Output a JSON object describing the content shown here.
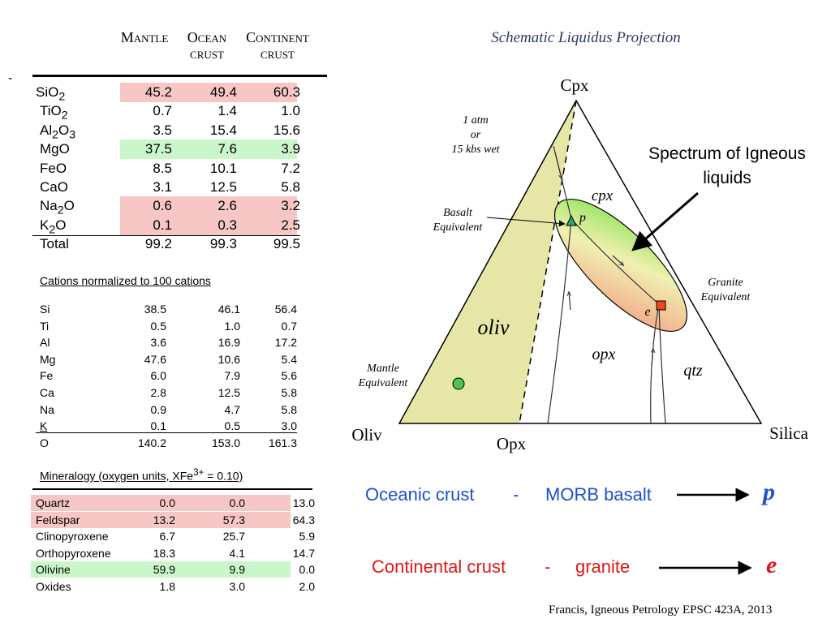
{
  "dash": "-",
  "headers": {
    "mantle": "Mantle",
    "ocean_l1": "Ocean",
    "ocean_l2": "crust",
    "continent_l1": "Continent",
    "continent_l2": "crust"
  },
  "oxides": [
    {
      "name_html": "SiO<sub>2</sub>",
      "mantle": "45.2",
      "ocean": "49.4",
      "continent": "60.3",
      "hl": "red"
    },
    {
      "name_html": "TiO<sub>2</sub>",
      "mantle": "0.7",
      "ocean": "1.4",
      "continent": "1.0",
      "hl": ""
    },
    {
      "name_html": "Al<sub>2</sub>O<sub>3</sub>",
      "mantle": "3.5",
      "ocean": "15.4",
      "continent": "15.6",
      "hl": ""
    },
    {
      "name_html": "MgO",
      "mantle": "37.5",
      "ocean": "7.6",
      "continent": "3.9",
      "hl": "green"
    },
    {
      "name_html": "FeO",
      "mantle": "8.5",
      "ocean": "10.1",
      "continent": "7.2",
      "hl": ""
    },
    {
      "name_html": "CaO",
      "mantle": "3.1",
      "ocean": "12.5",
      "continent": "5.8",
      "hl": ""
    },
    {
      "name_html": "Na<sub>2</sub>O",
      "mantle": "0.6",
      "ocean": "2.6",
      "continent": "3.2",
      "hl": "red"
    },
    {
      "name_html": "K<sub>2</sub>O",
      "mantle": "0.1",
      "ocean": "0.3",
      "continent": "2.5",
      "hl": "red"
    },
    {
      "name_html": "Total",
      "mantle": "99.2",
      "ocean": "99.3",
      "continent": "99.5",
      "hl": ""
    }
  ],
  "cations_title": "Cations normalized to  100 cations",
  "cations": [
    {
      "name": "Si",
      "mantle": "38.5",
      "ocean": "46.1",
      "continent": "56.4"
    },
    {
      "name": "Ti",
      "mantle": "0.5",
      "ocean": "1.0",
      "continent": "0.7"
    },
    {
      "name": "Al",
      "mantle": "3.6",
      "ocean": "16.9",
      "continent": "17.2"
    },
    {
      "name": "Mg",
      "mantle": "47.6",
      "ocean": "10.6",
      "continent": "5.4"
    },
    {
      "name": "Fe",
      "mantle": "6.0",
      "ocean": "7.9",
      "continent": "5.6"
    },
    {
      "name": "Ca",
      "mantle": "2.8",
      "ocean": "12.5",
      "continent": "5.8"
    },
    {
      "name": "Na",
      "mantle": "0.9",
      "ocean": "4.7",
      "continent": "5.8"
    },
    {
      "name": "K",
      "mantle": "0.1",
      "ocean": "0.5",
      "continent": "3.0"
    },
    {
      "name": "O",
      "mantle": "140.2",
      "ocean": "153.0",
      "continent": "161.3"
    }
  ],
  "mineralogy_title_html": "Mineralogy (oxygen units, XFe<sup>3+</sup> = 0.10)",
  "minerals": [
    {
      "name": "Quartz",
      "mantle": "0.0",
      "ocean": "0.0",
      "continent": "13.0",
      "hl": "red"
    },
    {
      "name": "Feldspar",
      "mantle": "13.2",
      "ocean": "57.3",
      "continent": "64.3",
      "hl": "red"
    },
    {
      "name": "Clinopyroxene",
      "mantle": "6.7",
      "ocean": "25.7",
      "continent": "5.9",
      "hl": ""
    },
    {
      "name": "Orthopyroxene",
      "mantle": "18.3",
      "ocean": "4.1",
      "continent": "14.7",
      "hl": ""
    },
    {
      "name": "Olivine",
      "mantle": "59.9",
      "ocean": "9.9",
      "continent": "0.0",
      "hl": "green"
    },
    {
      "name": "Oxides",
      "mantle": "1.8",
      "ocean": "3.0",
      "continent": "2.0",
      "hl": ""
    }
  ],
  "diagram": {
    "title": "Schematic Liquidus Projection",
    "cpx": "Cpx",
    "oliv_corner": "Oliv",
    "silica": "Silica",
    "opx_bottom": "Opx",
    "atm_l1": "1 atm",
    "atm_l2": "or",
    "atm_l3": "15 kbs wet",
    "basalt_l1": "Basalt",
    "basalt_l2": "Equivalent",
    "granite_l1": "Granite",
    "granite_l2": "Equivalent",
    "mantle_l1": "Mantle",
    "mantle_l2": "Equivalent",
    "field_cpx": "cpx",
    "field_oliv": "oliv",
    "field_opx": "opx",
    "field_qtz": "qtz",
    "pt_p": "p",
    "pt_e": "e",
    "spectrum_l1": "Spectrum of Igneous",
    "spectrum_l2": "liquids"
  },
  "bottom": {
    "ocean_crust": "Oceanic crust",
    "dash1": "-",
    "morb": "MORB basalt",
    "p": "p",
    "cont_crust": "Continental crust",
    "dash2": "-",
    "granite": "granite",
    "e": "e",
    "credit": "Francis, Igneous Petrology EPSC 423A, 2013"
  },
  "colors": {
    "blue": "#1f4fd0",
    "red": "#e01818",
    "olive_fill": "#e6e6a6",
    "hl_red": "#f6c7c4",
    "hl_green": "#c9f7c9"
  }
}
